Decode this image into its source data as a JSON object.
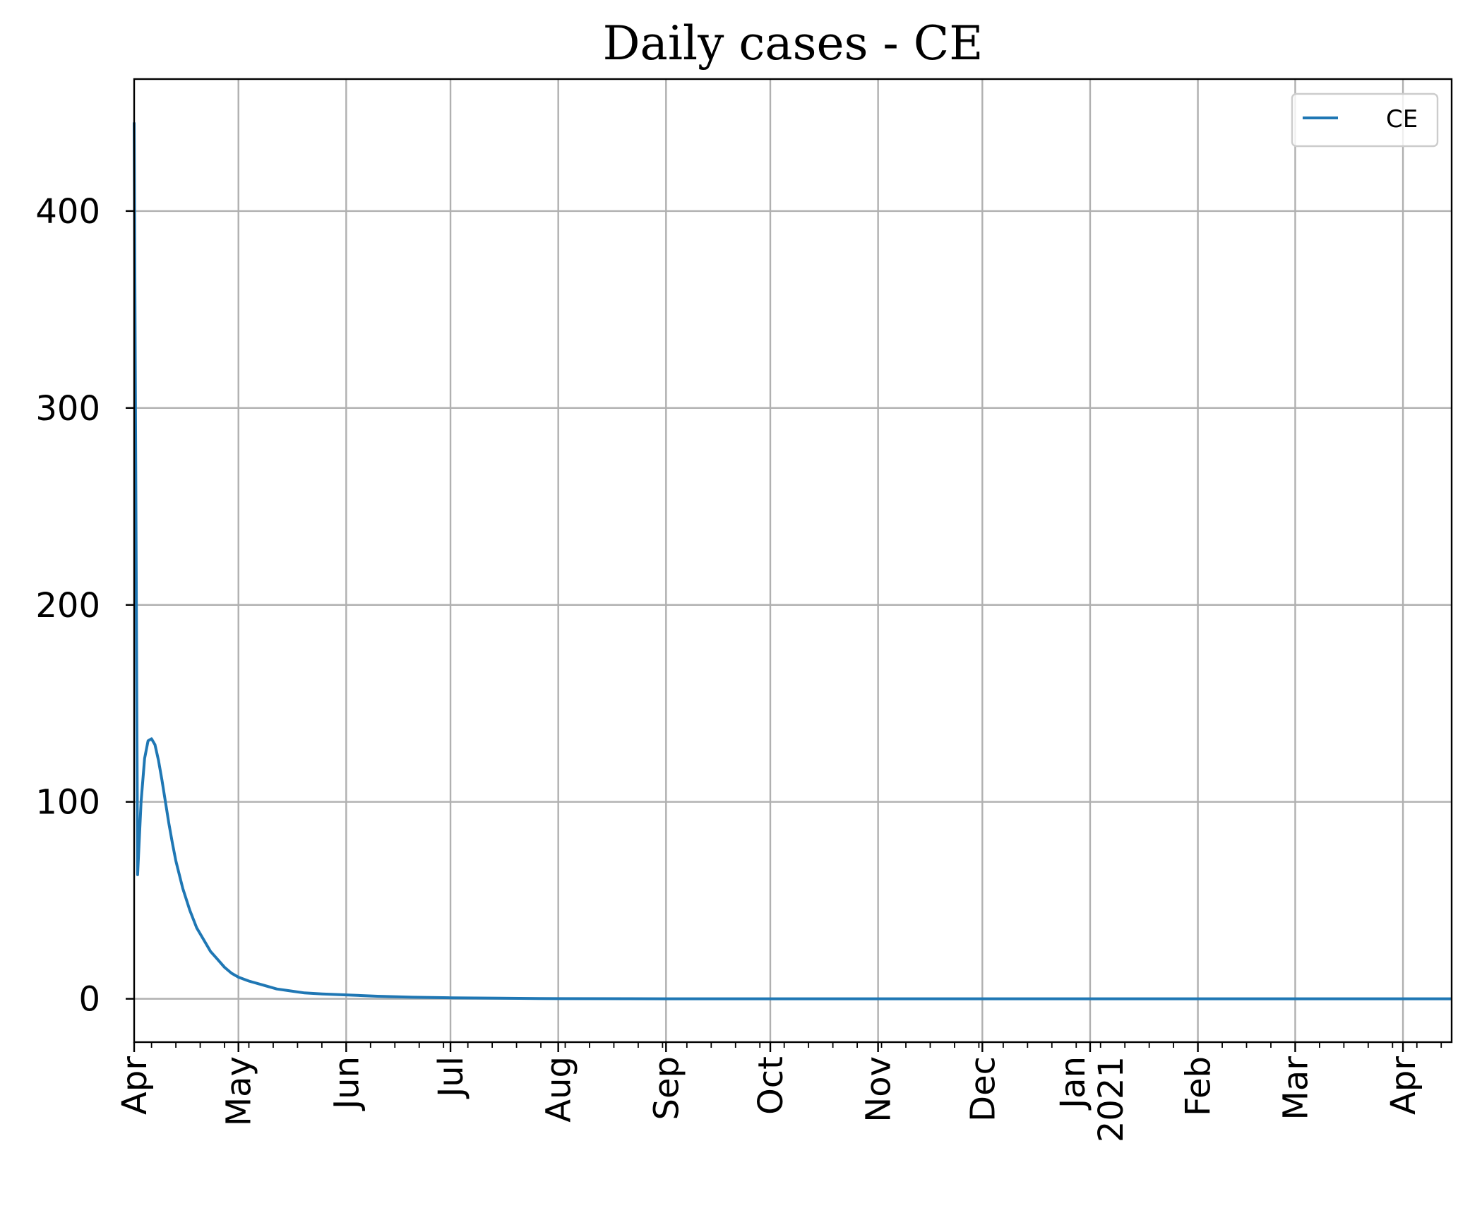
{
  "chart_data": {
    "type": "line",
    "title": "Daily cases - CE",
    "xlabel": "",
    "ylabel": "",
    "xlim": [
      "2020-04-01",
      "2021-04-15"
    ],
    "ylim": [
      -22,
      467
    ],
    "grid": true,
    "legend": {
      "position": "top-right"
    },
    "x_ticks": [
      {
        "date": "2020-04-01",
        "label": "Apr"
      },
      {
        "date": "2020-05-01",
        "label": "May"
      },
      {
        "date": "2020-06-01",
        "label": "Jun"
      },
      {
        "date": "2020-07-01",
        "label": "Jul"
      },
      {
        "date": "2020-08-01",
        "label": "Aug"
      },
      {
        "date": "2020-09-01",
        "label": "Sep"
      },
      {
        "date": "2020-10-01",
        "label": "Oct"
      },
      {
        "date": "2020-11-01",
        "label": "Nov"
      },
      {
        "date": "2020-12-01",
        "label": "Dec"
      },
      {
        "date": "2021-01-01",
        "label": "Jan",
        "sublabel": "2021"
      },
      {
        "date": "2021-02-01",
        "label": "Feb"
      },
      {
        "date": "2021-03-01",
        "label": "Mar"
      },
      {
        "date": "2021-04-01",
        "label": "Apr"
      }
    ],
    "y_ticks": [
      0,
      100,
      200,
      300,
      400
    ],
    "series": [
      {
        "name": "CE",
        "color": "#1f77b4",
        "x": [
          "2020-04-01",
          "2020-04-02",
          "2020-04-03",
          "2020-04-04",
          "2020-04-05",
          "2020-04-06",
          "2020-04-07",
          "2020-04-08",
          "2020-04-09",
          "2020-04-10",
          "2020-04-11",
          "2020-04-12",
          "2020-04-13",
          "2020-04-15",
          "2020-04-17",
          "2020-04-19",
          "2020-04-21",
          "2020-04-23",
          "2020-04-25",
          "2020-04-27",
          "2020-04-29",
          "2020-05-01",
          "2020-05-04",
          "2020-05-08",
          "2020-05-12",
          "2020-05-16",
          "2020-05-20",
          "2020-05-25",
          "2020-06-01",
          "2020-06-10",
          "2020-06-20",
          "2020-07-01",
          "2020-07-15",
          "2020-08-01",
          "2020-09-01",
          "2020-10-01",
          "2020-11-01",
          "2020-12-01",
          "2021-01-01",
          "2021-02-01",
          "2021-03-01",
          "2021-04-01",
          "2021-04-15"
        ],
        "y": [
          445,
          63,
          100,
          122,
          131,
          132,
          129,
          121,
          111,
          100,
          89,
          79,
          70,
          56,
          45,
          36,
          30,
          24,
          20,
          16,
          13,
          11,
          9,
          7,
          5,
          4,
          3,
          2.5,
          2,
          1.3,
          0.8,
          0.5,
          0.3,
          0.1,
          0,
          0,
          0,
          0,
          0,
          0,
          0,
          0,
          0
        ]
      }
    ]
  }
}
